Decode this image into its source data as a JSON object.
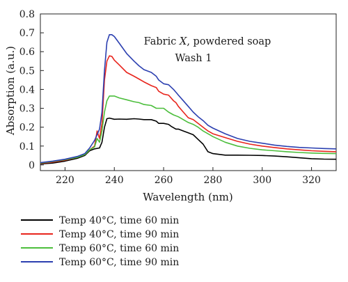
{
  "chart_data": {
    "type": "line",
    "xlabel": "Wavelength (nm)",
    "ylabel": "Absorption (a.u.)",
    "xlim": [
      210,
      330
    ],
    "ylim": [
      -0.03,
      0.8
    ],
    "x_ticks": [
      220,
      240,
      260,
      280,
      300,
      320
    ],
    "y_ticks": [
      0,
      0.1,
      0.2,
      0.3,
      0.4,
      0.5,
      0.6,
      0.7,
      0.8
    ],
    "x_tick_labels": [
      "220",
      "240",
      "260",
      "280",
      "300",
      "320"
    ],
    "y_tick_labels": [
      "0",
      "0.1",
      "0.2",
      "0.3",
      "0.4",
      "0.5",
      "0.6",
      "0.7",
      "0.8"
    ],
    "grid": false,
    "legend_position": "bottom-left",
    "annotation": {
      "line1_prefix": "Fabric ",
      "line1_italic": "X",
      "line1_suffix": ", powdered soap",
      "line2": "Wash 1"
    },
    "series": [
      {
        "name": "Temp 40°C, time 60 min",
        "color": "#000000",
        "points": [
          [
            210,
            0.005
          ],
          [
            215,
            0.01
          ],
          [
            220,
            0.02
          ],
          [
            225,
            0.035
          ],
          [
            228,
            0.05
          ],
          [
            230,
            0.075
          ],
          [
            232,
            0.085
          ],
          [
            234,
            0.09
          ],
          [
            235,
            0.12
          ],
          [
            236,
            0.2
          ],
          [
            237,
            0.245
          ],
          [
            238,
            0.248
          ],
          [
            240,
            0.242
          ],
          [
            242,
            0.243
          ],
          [
            245,
            0.242
          ],
          [
            248,
            0.245
          ],
          [
            250,
            0.243
          ],
          [
            252,
            0.24
          ],
          [
            255,
            0.24
          ],
          [
            257,
            0.232
          ],
          [
            258,
            0.22
          ],
          [
            260,
            0.22
          ],
          [
            262,
            0.215
          ],
          [
            263,
            0.205
          ],
          [
            265,
            0.19
          ],
          [
            266,
            0.19
          ],
          [
            268,
            0.18
          ],
          [
            270,
            0.17
          ],
          [
            272,
            0.16
          ],
          [
            274,
            0.135
          ],
          [
            276,
            0.11
          ],
          [
            278,
            0.07
          ],
          [
            280,
            0.06
          ],
          [
            285,
            0.052
          ],
          [
            290,
            0.052
          ],
          [
            295,
            0.051
          ],
          [
            300,
            0.05
          ],
          [
            305,
            0.047
          ],
          [
            310,
            0.043
          ],
          [
            315,
            0.038
          ],
          [
            320,
            0.033
          ],
          [
            325,
            0.031
          ],
          [
            330,
            0.03
          ]
        ]
      },
      {
        "name": "Temp 40°C, time 90 min",
        "color": "#e8241c",
        "points": [
          [
            210,
            0.008
          ],
          [
            215,
            0.015
          ],
          [
            220,
            0.025
          ],
          [
            225,
            0.04
          ],
          [
            228,
            0.055
          ],
          [
            230,
            0.08
          ],
          [
            232,
            0.1
          ],
          [
            233,
            0.18
          ],
          [
            234,
            0.14
          ],
          [
            235,
            0.22
          ],
          [
            236,
            0.45
          ],
          [
            237,
            0.55
          ],
          [
            238,
            0.578
          ],
          [
            239,
            0.575
          ],
          [
            240,
            0.555
          ],
          [
            242,
            0.53
          ],
          [
            245,
            0.49
          ],
          [
            248,
            0.47
          ],
          [
            250,
            0.455
          ],
          [
            252,
            0.44
          ],
          [
            255,
            0.42
          ],
          [
            257,
            0.41
          ],
          [
            258,
            0.39
          ],
          [
            260,
            0.375
          ],
          [
            262,
            0.37
          ],
          [
            264,
            0.34
          ],
          [
            265,
            0.33
          ],
          [
            266,
            0.31
          ],
          [
            268,
            0.28
          ],
          [
            270,
            0.25
          ],
          [
            272,
            0.24
          ],
          [
            274,
            0.22
          ],
          [
            276,
            0.2
          ],
          [
            278,
            0.18
          ],
          [
            280,
            0.165
          ],
          [
            285,
            0.145
          ],
          [
            290,
            0.125
          ],
          [
            295,
            0.11
          ],
          [
            300,
            0.1
          ],
          [
            305,
            0.092
          ],
          [
            310,
            0.085
          ],
          [
            315,
            0.08
          ],
          [
            320,
            0.075
          ],
          [
            325,
            0.072
          ],
          [
            330,
            0.07
          ]
        ]
      },
      {
        "name": "Temp 60°C, time 60 min",
        "color": "#4cbe3c",
        "points": [
          [
            210,
            0.01
          ],
          [
            215,
            0.018
          ],
          [
            220,
            0.028
          ],
          [
            225,
            0.04
          ],
          [
            228,
            0.055
          ],
          [
            230,
            0.08
          ],
          [
            232,
            0.095
          ],
          [
            233,
            0.14
          ],
          [
            234,
            0.12
          ],
          [
            235,
            0.18
          ],
          [
            236,
            0.28
          ],
          [
            237,
            0.34
          ],
          [
            238,
            0.365
          ],
          [
            240,
            0.365
          ],
          [
            242,
            0.355
          ],
          [
            245,
            0.345
          ],
          [
            248,
            0.335
          ],
          [
            250,
            0.33
          ],
          [
            252,
            0.32
          ],
          [
            255,
            0.315
          ],
          [
            257,
            0.3
          ],
          [
            258,
            0.3
          ],
          [
            260,
            0.3
          ],
          [
            262,
            0.28
          ],
          [
            264,
            0.265
          ],
          [
            266,
            0.255
          ],
          [
            268,
            0.24
          ],
          [
            270,
            0.225
          ],
          [
            272,
            0.215
          ],
          [
            274,
            0.2
          ],
          [
            276,
            0.18
          ],
          [
            278,
            0.165
          ],
          [
            280,
            0.15
          ],
          [
            285,
            0.12
          ],
          [
            290,
            0.1
          ],
          [
            295,
            0.088
          ],
          [
            300,
            0.08
          ],
          [
            305,
            0.075
          ],
          [
            310,
            0.07
          ],
          [
            315,
            0.066
          ],
          [
            320,
            0.063
          ],
          [
            325,
            0.061
          ],
          [
            330,
            0.06
          ]
        ]
      },
      {
        "name": "Temp 60°C, time 90 min",
        "color": "#2b3fb0",
        "points": [
          [
            210,
            0.012
          ],
          [
            215,
            0.02
          ],
          [
            220,
            0.03
          ],
          [
            225,
            0.045
          ],
          [
            228,
            0.06
          ],
          [
            230,
            0.09
          ],
          [
            232,
            0.13
          ],
          [
            233,
            0.16
          ],
          [
            234,
            0.19
          ],
          [
            235,
            0.28
          ],
          [
            236,
            0.5
          ],
          [
            237,
            0.65
          ],
          [
            238,
            0.69
          ],
          [
            239,
            0.69
          ],
          [
            240,
            0.68
          ],
          [
            242,
            0.645
          ],
          [
            245,
            0.59
          ],
          [
            248,
            0.55
          ],
          [
            250,
            0.525
          ],
          [
            252,
            0.505
          ],
          [
            255,
            0.49
          ],
          [
            257,
            0.47
          ],
          [
            258,
            0.45
          ],
          [
            260,
            0.43
          ],
          [
            262,
            0.425
          ],
          [
            264,
            0.4
          ],
          [
            266,
            0.37
          ],
          [
            268,
            0.34
          ],
          [
            270,
            0.31
          ],
          [
            272,
            0.28
          ],
          [
            274,
            0.255
          ],
          [
            276,
            0.235
          ],
          [
            278,
            0.21
          ],
          [
            280,
            0.195
          ],
          [
            285,
            0.165
          ],
          [
            290,
            0.14
          ],
          [
            295,
            0.125
          ],
          [
            300,
            0.115
          ],
          [
            305,
            0.105
          ],
          [
            310,
            0.098
          ],
          [
            315,
            0.093
          ],
          [
            320,
            0.09
          ],
          [
            325,
            0.087
          ],
          [
            330,
            0.085
          ]
        ]
      }
    ]
  }
}
